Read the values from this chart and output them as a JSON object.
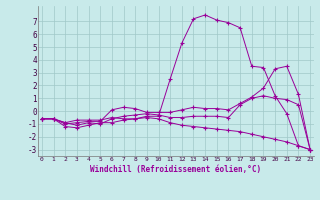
{
  "xlabel": "Windchill (Refroidissement éolien,°C)",
  "background_color": "#c8eaea",
  "grid_color": "#a0c8c8",
  "line_color": "#990099",
  "xlim": [
    -0.3,
    23.3
  ],
  "ylim": [
    -3.5,
    8.2
  ],
  "xticks": [
    0,
    1,
    2,
    3,
    4,
    5,
    6,
    7,
    8,
    9,
    10,
    11,
    12,
    13,
    14,
    15,
    16,
    17,
    18,
    19,
    20,
    21,
    22,
    23
  ],
  "yticks": [
    -3,
    -2,
    -1,
    0,
    1,
    2,
    3,
    4,
    5,
    6,
    7
  ],
  "series": [
    [
      -0.6,
      -0.6,
      -0.9,
      -0.7,
      -0.7,
      -0.7,
      -0.5,
      -0.6,
      -0.6,
      -0.4,
      -0.4,
      2.5,
      5.3,
      7.2,
      7.5,
      7.1,
      6.9,
      6.5,
      3.5,
      3.4,
      1.2,
      -0.2,
      -2.7,
      -3.0
    ],
    [
      -0.6,
      -0.6,
      -1.2,
      -1.3,
      -1.1,
      -0.9,
      -0.9,
      -0.7,
      -0.6,
      -0.5,
      -0.6,
      -0.9,
      -1.1,
      -1.2,
      -1.3,
      -1.4,
      -1.5,
      -1.6,
      -1.8,
      -2.0,
      -2.2,
      -2.4,
      -2.7,
      -3.0
    ],
    [
      -0.6,
      -0.6,
      -1.0,
      -0.9,
      -0.8,
      -0.8,
      0.1,
      0.3,
      0.2,
      -0.1,
      -0.1,
      -0.1,
      0.1,
      0.3,
      0.2,
      0.2,
      0.1,
      0.6,
      1.1,
      1.8,
      3.3,
      3.5,
      1.3,
      -3.0
    ],
    [
      -0.6,
      -0.6,
      -0.9,
      -1.1,
      -0.9,
      -1.0,
      -0.6,
      -0.4,
      -0.3,
      -0.2,
      -0.3,
      -0.5,
      -0.5,
      -0.4,
      -0.4,
      -0.4,
      -0.5,
      0.5,
      1.0,
      1.2,
      1.0,
      0.9,
      0.5,
      -3.0
    ]
  ]
}
